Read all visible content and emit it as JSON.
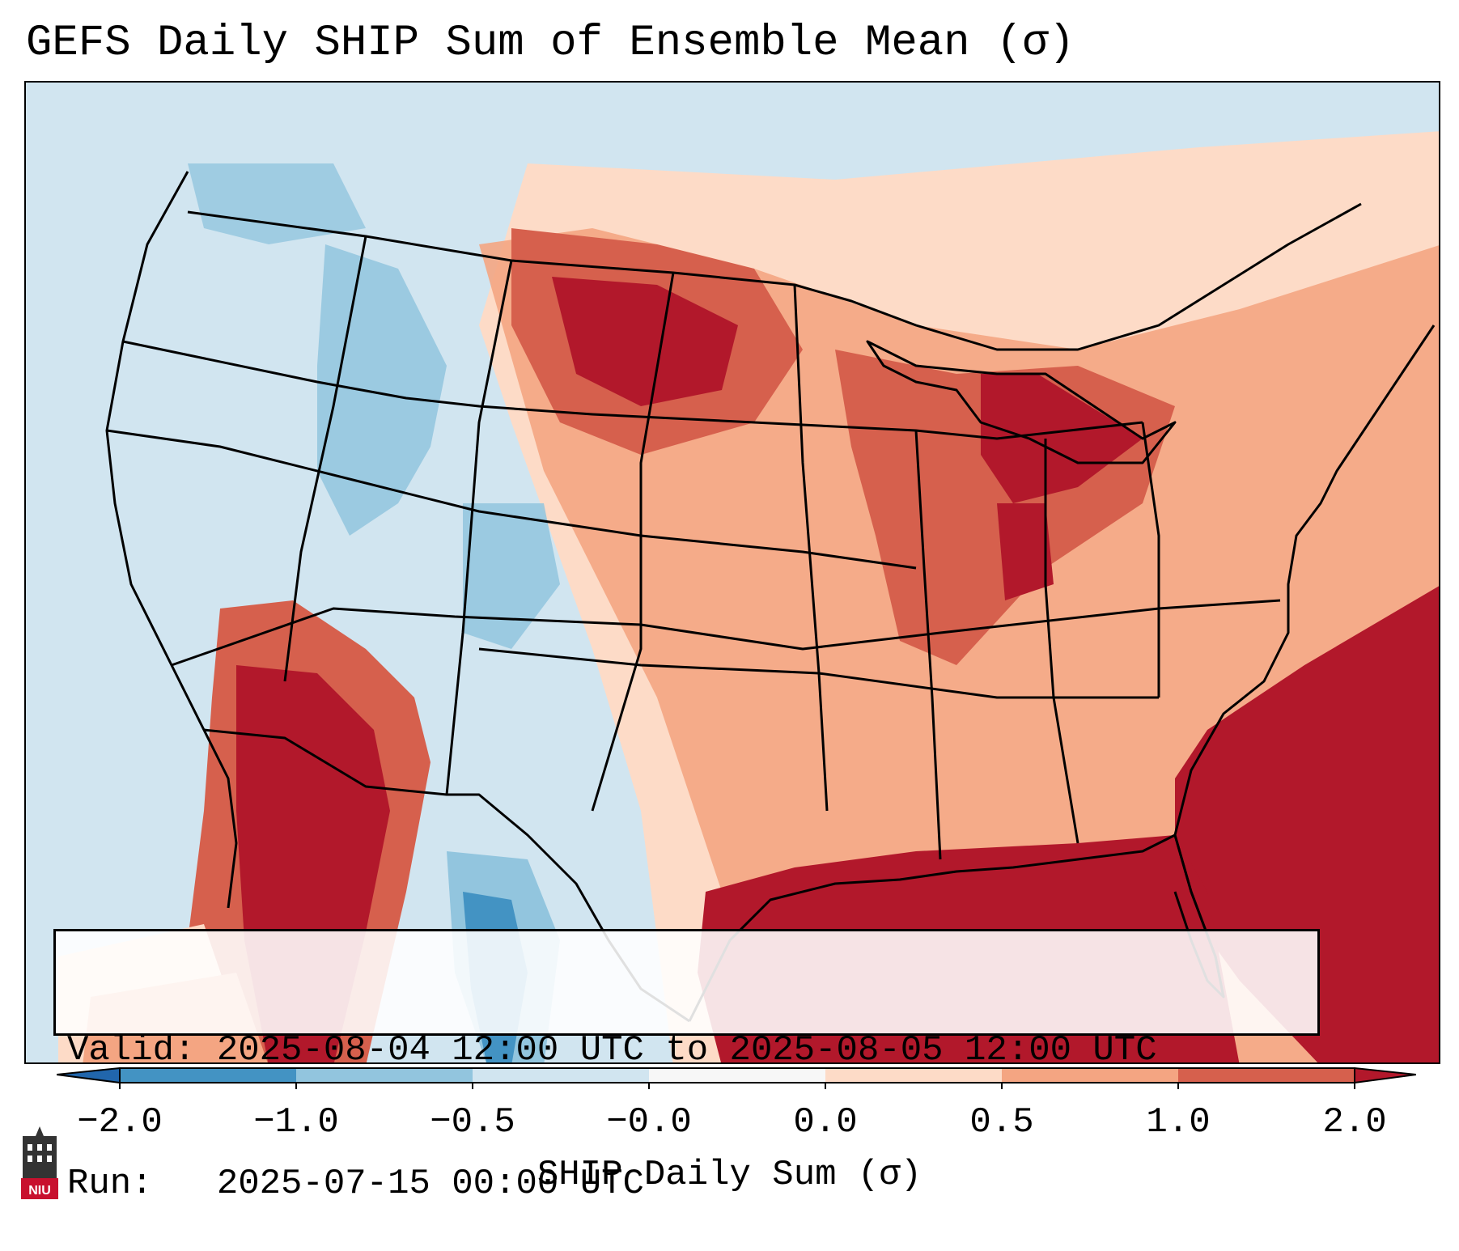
{
  "title": "GEFS Daily SHIP Sum of Ensemble Mean (σ)",
  "info": {
    "valid_line": "Valid: 2025-08-04 12:00 UTC to 2025-08-05 12:00 UTC",
    "run_line": "Run:   2025-07-15 00:00 UTC"
  },
  "colorbar": {
    "label": "SHIP Daily Sum (σ)",
    "ticks": [
      "−2.0",
      "−1.0",
      "−0.5",
      "−0.0",
      "0.0",
      "0.5",
      "1.0",
      "2.0"
    ],
    "colors": [
      "#2166ac",
      "#4393c3",
      "#92c5de",
      "#d1e5f0",
      "#f7f7f7",
      "#fddbc7",
      "#f4a582",
      "#d6604d",
      "#b2182b"
    ]
  },
  "logo": {
    "text": "NIU",
    "icon": "university-tower-logo"
  },
  "map": {
    "background_color": "#d1e5f0",
    "ocean_hot_color": "#b2182b",
    "border_color": "#000000"
  }
}
